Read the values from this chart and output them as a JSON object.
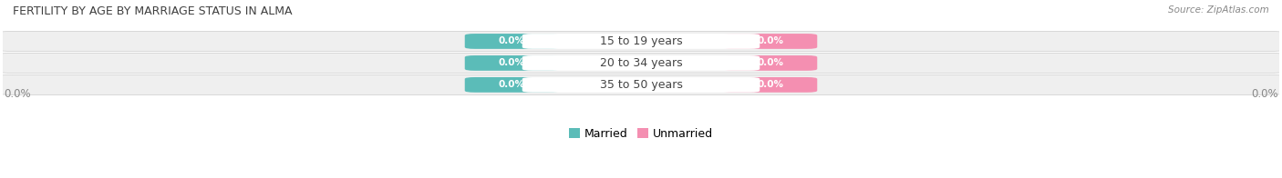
{
  "title": "FERTILITY BY AGE BY MARRIAGE STATUS IN ALMA",
  "source": "Source: ZipAtlas.com",
  "age_groups": [
    "15 to 19 years",
    "20 to 34 years",
    "35 to 50 years"
  ],
  "married_values": [
    0.0,
    0.0,
    0.0
  ],
  "unmarried_values": [
    0.0,
    0.0,
    0.0
  ],
  "married_color": "#5bbcb8",
  "unmarried_color": "#f48fb1",
  "bar_bg_color": "#e4e4e4",
  "bar_inner_color": "#f0f0f0",
  "title_color": "#404040",
  "source_color": "#888888",
  "axis_label_left": "0.0%",
  "axis_label_right": "0.0%",
  "figsize": [
    14.06,
    1.96
  ],
  "dpi": 100,
  "bg_color": "#ffffff"
}
